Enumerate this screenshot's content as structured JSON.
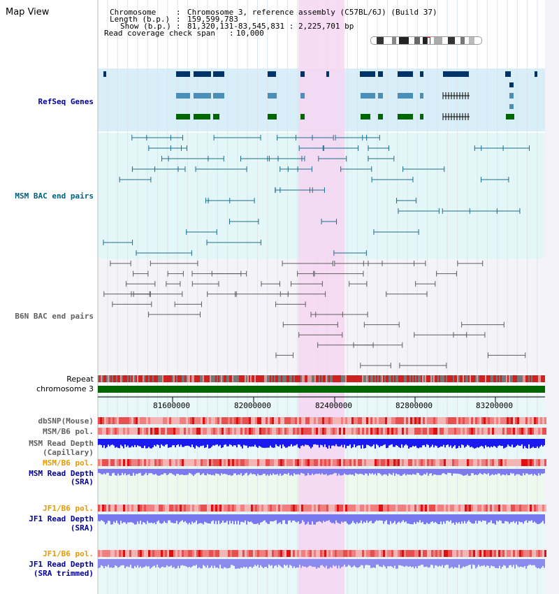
{
  "title": "Map View",
  "info": {
    "chromosome_label": "Chromosome",
    "chromosome_value": "Chromosome 3, reference assembly (C57BL/6J) (Build 37)",
    "length_label": "Length (b.p.)",
    "length_value": "159,599,783",
    "show_label": "Show (b.p.)",
    "show_value": "81,320,131-83,545,831 : 2,225,701 bp",
    "coverage_label": "Read coverage check span",
    "coverage_value": "10,000"
  },
  "tracks": {
    "refseq": "RefSeq Genes",
    "msm_bac": "MSM BAC end pairs",
    "b6n_bac": "B6N BAC end pairs",
    "repeat": "Repeat",
    "chromosome": "chromosome 3",
    "dbsnp": "dbSNP(Mouse)",
    "msm_b6_pol": "MSM/B6 pol.",
    "msm_read_depth_cap_1": "MSM Read Depth",
    "msm_read_depth_cap_2": "(Capillary)",
    "msm_b6_pol_2": "MSM/B6 pol.",
    "msm_read_depth_sra_1": "MSM Read Depth",
    "msm_read_depth_sra_2": "(SRA)",
    "jf1_b6_pol": "JF1/B6 pol.",
    "jf1_read_depth_sra_1": "JF1 Read Depth",
    "jf1_read_depth_sra_2": "(SRA)",
    "jf1_b6_pol_2": "JF1/B6 pol.",
    "jf1_read_depth_trim_1": "JF1 Read Depth",
    "jf1_read_depth_trim_2": "(SRA trimmed)"
  },
  "axis_ticks": [
    "81600000",
    "82000000",
    "82400000",
    "82800000",
    "83200000"
  ],
  "colors": {
    "label_navy": "#000099",
    "label_teal": "#006080",
    "label_gray": "#606060",
    "label_orange": "#e69a00",
    "highlight": "#f6d6f2",
    "refseq_bg": "#d8eef9",
    "bac_bg": "#e3f6f8",
    "chromosome_green": "#006600"
  }
}
